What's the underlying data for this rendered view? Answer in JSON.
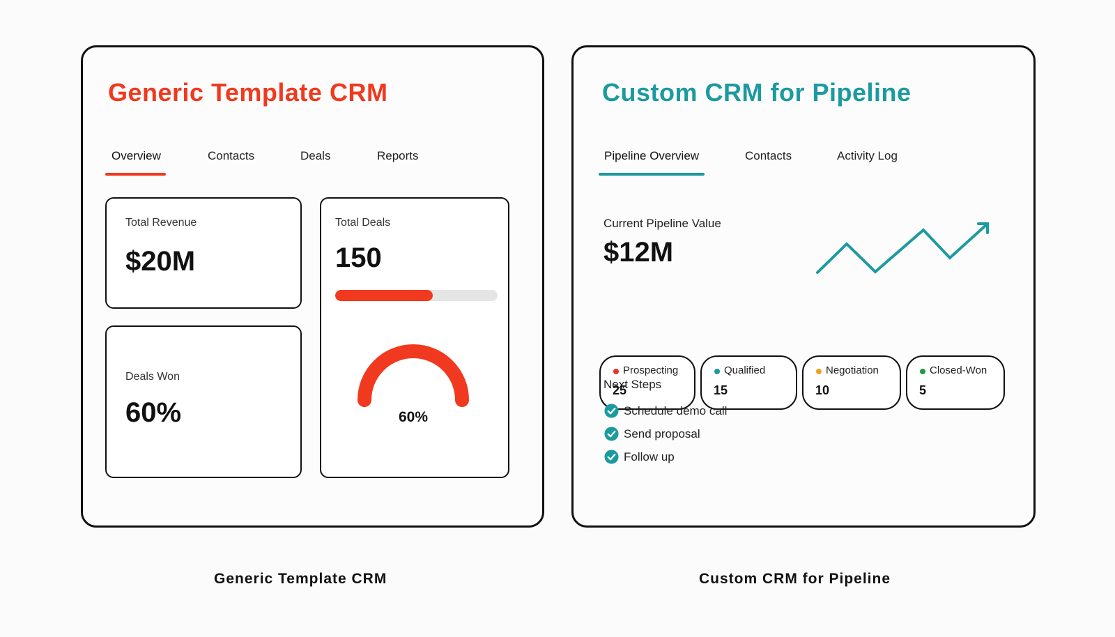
{
  "colors": {
    "generic_accent": "#f0391e",
    "custom_accent": "#1b9aa0",
    "prospecting": "#e8332a",
    "qualified": "#1b9aa0",
    "negotiation": "#f0a21e",
    "closed_won": "#1f9a3c"
  },
  "generic": {
    "title": "Generic Template CRM",
    "tabs": [
      {
        "label": "Overview",
        "active": true
      },
      {
        "label": "Contacts",
        "active": false
      },
      {
        "label": "Deals",
        "active": false
      },
      {
        "label": "Reports",
        "active": false
      }
    ],
    "total_revenue": {
      "label": "Total Revenue",
      "value": "$20M"
    },
    "total_deals": {
      "label": "Total Deals",
      "value": "150",
      "progress": 0.6
    },
    "deals_won": {
      "label": "Deals Won",
      "value": "60%"
    },
    "gauge": {
      "label": "60%",
      "fraction": 0.6
    },
    "caption": "Generic Template CRM"
  },
  "custom": {
    "title": "Custom CRM for Pipeline",
    "tabs": [
      {
        "label": "Pipeline Overview",
        "active": true
      },
      {
        "label": "Contacts",
        "active": false
      },
      {
        "label": "Activity Log",
        "active": false
      }
    ],
    "pipeline": {
      "label": "Current Pipeline Value",
      "value": "$12M",
      "trend_icon": "trend-up-arrow-icon"
    },
    "stages": [
      {
        "name": "Prospecting",
        "count": "25"
      },
      {
        "name": "Qualified",
        "count": "15"
      },
      {
        "name": "Negotiation",
        "count": "10"
      },
      {
        "name": "Closed-Won",
        "count": "5"
      }
    ],
    "next_steps": {
      "title": "Next Steps",
      "items": [
        "Schedule demo call",
        "Send proposal",
        "Follow up"
      ]
    },
    "caption": "Custom CRM for Pipeline"
  }
}
